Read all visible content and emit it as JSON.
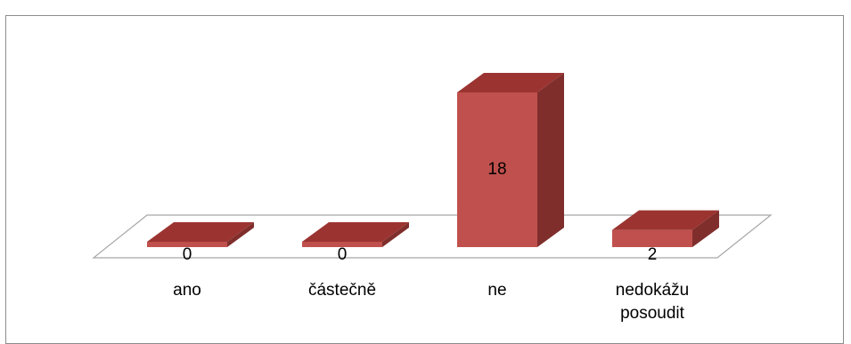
{
  "chart_data": {
    "type": "bar",
    "style": "3d-column",
    "categories": [
      [
        "ano"
      ],
      [
        "částečně"
      ],
      [
        "ne"
      ],
      [
        "nedokážu",
        "posoudit"
      ]
    ],
    "values": [
      0,
      0,
      18,
      2
    ],
    "data_labels": [
      "0",
      "0",
      "18",
      "2"
    ],
    "ylim": [
      0,
      18
    ],
    "grid": false,
    "legend": "none",
    "colors": {
      "bar_front": "#c0504d",
      "bar_side": "#7f2e2c",
      "bar_top": "#9b3431",
      "floor_stroke": "#a6a6a6",
      "frame": "#8c8c8c"
    }
  }
}
